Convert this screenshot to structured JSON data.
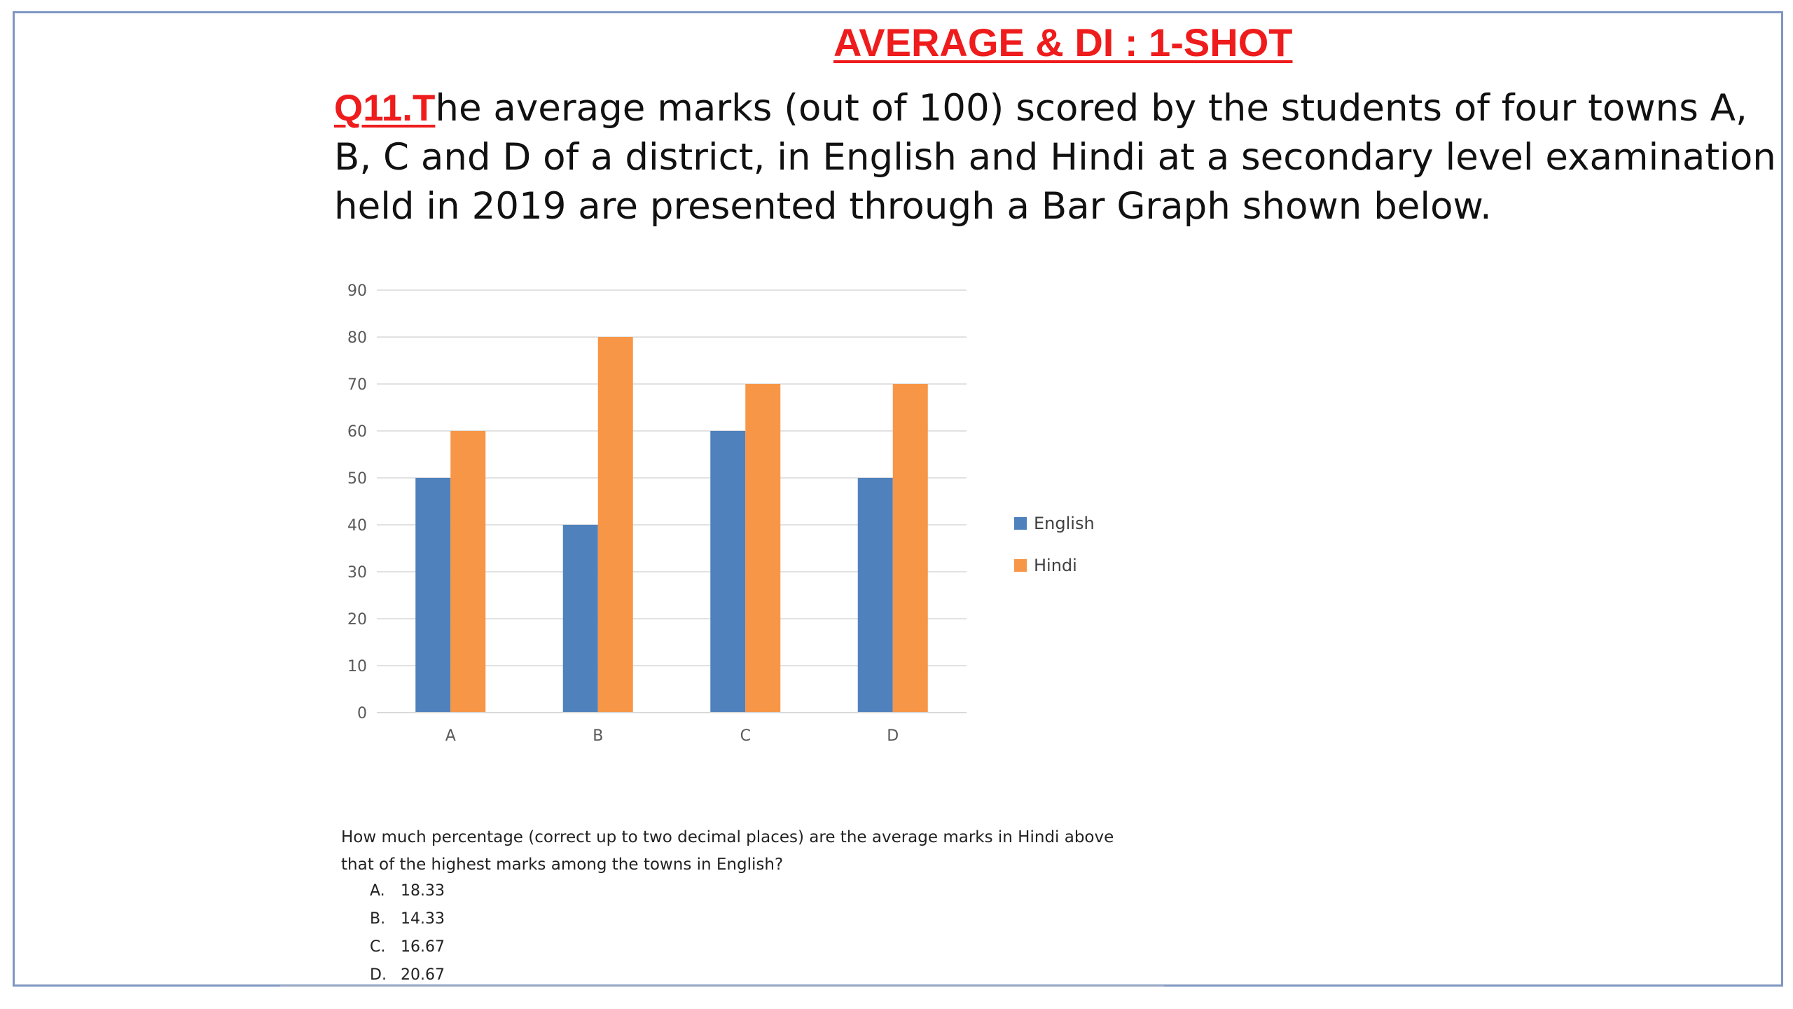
{
  "slide": {
    "title": "AVERAGE & DI : 1-SHOT",
    "question_number": "Q11.",
    "question_lead": "T",
    "question_text": "he average marks (out of 100) scored by the students of four towns A, B, C and D of a district, in English and Hindi at a secondary level examination held in 2019 are presented through a Bar Graph shown below.",
    "sub_question": "How much percentage (correct up to two decimal places) are the average marks in Hindi above that of the highest marks among the towns in English?",
    "options": [
      {
        "key": "A.",
        "value": "18.33"
      },
      {
        "key": "B.",
        "value": "14.33"
      },
      {
        "key": "C.",
        "value": "16.67"
      },
      {
        "key": "D.",
        "value": "20.67"
      }
    ],
    "colors": {
      "title": "#ee1c1c",
      "frame": "#7f96c0"
    }
  },
  "chart_data": {
    "type": "bar",
    "categories": [
      "A",
      "B",
      "C",
      "D"
    ],
    "series": [
      {
        "name": "English",
        "values": [
          50,
          40,
          60,
          50
        ],
        "color": "#4f81bd"
      },
      {
        "name": "Hindi",
        "values": [
          60,
          80,
          70,
          70
        ],
        "color": "#f79646"
      }
    ],
    "yticks": [
      0,
      10,
      20,
      30,
      40,
      50,
      60,
      70,
      80,
      90
    ],
    "ylim": [
      0,
      90
    ],
    "grid": true,
    "legend_position": "right"
  }
}
